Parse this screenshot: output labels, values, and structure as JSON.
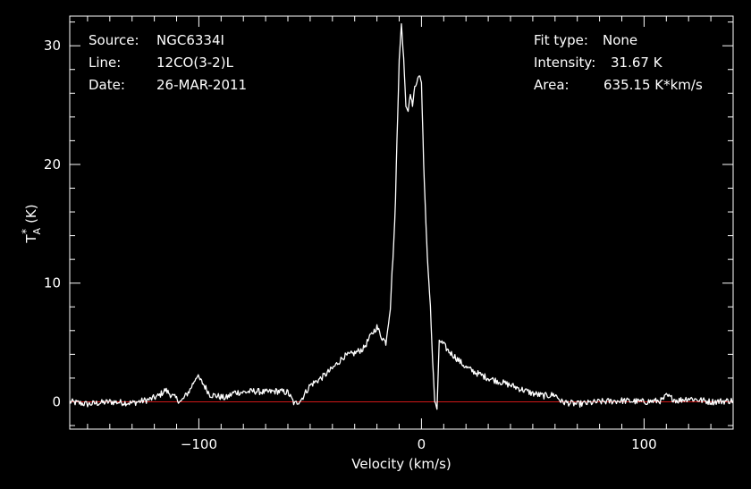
{
  "info": {
    "source_label": "Source:",
    "source_value": "NGC6334I",
    "line_label": "Line:",
    "line_value": "12CO(3-2)L",
    "date_label": "Date:",
    "date_value": "26-MAR-2011",
    "fit_label": "Fit type:",
    "fit_value": "None",
    "intensity_label": "Intensity:",
    "intensity_value": "31.67 K",
    "area_label": "Area:",
    "area_value": "635.15 K*km/s"
  },
  "chart_data": {
    "type": "line",
    "xlabel": "Velocity (km/s)",
    "ylabel": "T",
    "ylabel_sub": "A",
    "ylabel_sup": "*",
    "ylabel_unit": "(K)",
    "xlim": [
      -158,
      140
    ],
    "ylim": [
      -2.3,
      32.5
    ],
    "x_ticks": [
      -100,
      0,
      100
    ],
    "y_ticks": [
      0,
      10,
      20,
      30
    ],
    "baseline": 0,
    "colors": {
      "line": "#ffffff",
      "baseline": "#d01818",
      "axes": "#ffffff"
    },
    "series": [
      {
        "x": [
          -158,
          -150,
          -140,
          -130,
          -122,
          -118,
          -115,
          -112,
          -108,
          -104,
          -101,
          -98,
          -95,
          -92,
          -88,
          -84,
          -80,
          -75,
          -70,
          -65,
          -60,
          -57,
          -54,
          -50,
          -45,
          -40,
          -35,
          -30,
          -26,
          -22,
          -20,
          -18,
          -16,
          -14,
          -12,
          -11,
          -10,
          -9,
          -8,
          -7,
          -6,
          -5,
          -4,
          -3,
          -2,
          -1,
          0,
          1,
          2,
          3,
          4,
          5,
          6,
          7,
          8,
          10,
          12,
          15,
          20,
          25,
          30,
          40,
          50,
          55,
          60,
          63,
          70,
          80,
          90,
          100,
          108,
          110,
          115,
          120,
          130,
          140
        ],
        "y": [
          0.0,
          -0.2,
          0.0,
          -0.1,
          0.2,
          0.5,
          1.0,
          0.5,
          0.0,
          1.0,
          2.2,
          1.5,
          0.6,
          0.5,
          0.3,
          0.8,
          0.8,
          0.9,
          0.8,
          0.9,
          0.8,
          -0.2,
          0.2,
          1.4,
          2.0,
          2.8,
          3.8,
          4.1,
          4.5,
          5.8,
          6.3,
          5.5,
          5.0,
          8.0,
          15.0,
          22.0,
          29.0,
          31.67,
          29.0,
          25.0,
          24.5,
          26.0,
          25.0,
          26.5,
          27.0,
          27.5,
          27.0,
          20.0,
          15.0,
          11.0,
          8.0,
          3.5,
          0.0,
          -0.6,
          5.2,
          4.8,
          4.3,
          3.8,
          2.9,
          2.4,
          2.0,
          1.4,
          0.7,
          0.5,
          0.6,
          0.0,
          -0.2,
          0.0,
          0.1,
          0.0,
          0.1,
          0.5,
          0.1,
          0.3,
          0.0,
          0.1
        ]
      }
    ]
  }
}
